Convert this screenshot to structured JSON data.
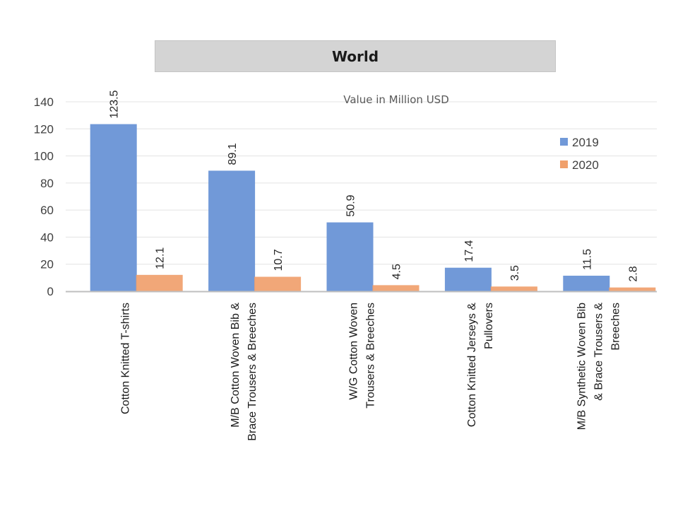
{
  "chart_data": {
    "type": "bar",
    "title": "World",
    "subtitle": "Value in Million USD",
    "categories": [
      [
        "Cotton  Knitted  T-shirts"
      ],
      [
        "M/B Cotton  Woven Bib &",
        "Brace Trousers & Breeches"
      ],
      [
        "W/G Cotton Woven",
        "Trousers & Breeches"
      ],
      [
        "Cotton  Knitted  Jerseys &",
        "Pullovers"
      ],
      [
        "M/B Synthetic  Woven Bib",
        "& Brace Trousers &",
        "Breeches"
      ]
    ],
    "series": [
      {
        "name": "2019",
        "color": "#7199d8",
        "values": [
          123.5,
          89.1,
          50.9,
          17.4,
          11.5
        ]
      },
      {
        "name": "2020",
        "color": "#f0a06c",
        "values": [
          12.1,
          10.7,
          4.5,
          3.5,
          2.8
        ]
      }
    ],
    "data_labels": [
      [
        "123.5",
        "89.1",
        "50.9",
        "17.4",
        "11.5"
      ],
      [
        "12.1",
        "10.7",
        "4.5",
        "3.5",
        "2.8"
      ]
    ],
    "yticks": [
      "0",
      "20",
      "40",
      "60",
      "80",
      "100",
      "120",
      "140"
    ],
    "ylim": [
      0,
      140
    ],
    "grid": true,
    "legend_position": "right",
    "xlabel": "",
    "ylabel": ""
  }
}
